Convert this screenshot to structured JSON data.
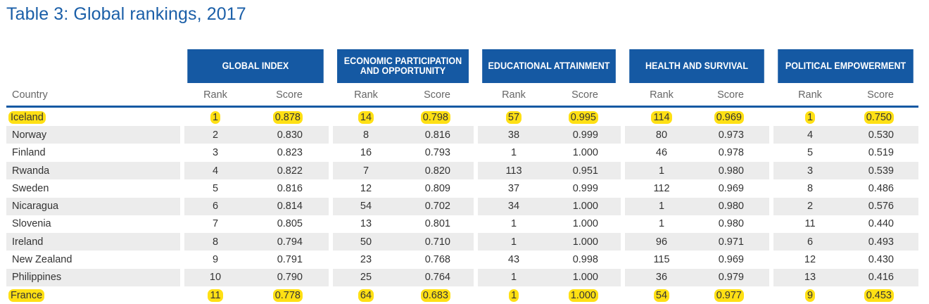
{
  "title": "Table 3: Global rankings, 2017",
  "groups": [
    "GLOBAL INDEX",
    "ECONOMIC PARTICIPATION AND OPPORTUNITY",
    "EDUCATIONAL ATTAINMENT",
    "HEALTH AND SURVIVAL",
    "POLITICAL EMPOWERMENT"
  ],
  "col_country": "Country",
  "col_rank": "Rank",
  "col_score": "Score",
  "rows": [
    {
      "country": "Iceland",
      "vals": [
        "1",
        "0.878",
        "14",
        "0.798",
        "57",
        "0.995",
        "114",
        "0.969",
        "1",
        "0.750"
      ],
      "highlight": true
    },
    {
      "country": "Norway",
      "vals": [
        "2",
        "0.830",
        "8",
        "0.816",
        "38",
        "0.999",
        "80",
        "0.973",
        "4",
        "0.530"
      ],
      "highlight": false
    },
    {
      "country": "Finland",
      "vals": [
        "3",
        "0.823",
        "16",
        "0.793",
        "1",
        "1.000",
        "46",
        "0.978",
        "5",
        "0.519"
      ],
      "highlight": false
    },
    {
      "country": "Rwanda",
      "vals": [
        "4",
        "0.822",
        "7",
        "0.820",
        "113",
        "0.951",
        "1",
        "0.980",
        "3",
        "0.539"
      ],
      "highlight": false
    },
    {
      "country": "Sweden",
      "vals": [
        "5",
        "0.816",
        "12",
        "0.809",
        "37",
        "0.999",
        "112",
        "0.969",
        "8",
        "0.486"
      ],
      "highlight": false
    },
    {
      "country": "Nicaragua",
      "vals": [
        "6",
        "0.814",
        "54",
        "0.702",
        "34",
        "1.000",
        "1",
        "0.980",
        "2",
        "0.576"
      ],
      "highlight": false
    },
    {
      "country": "Slovenia",
      "vals": [
        "7",
        "0.805",
        "13",
        "0.801",
        "1",
        "1.000",
        "1",
        "0.980",
        "11",
        "0.440"
      ],
      "highlight": false
    },
    {
      "country": "Ireland",
      "vals": [
        "8",
        "0.794",
        "50",
        "0.710",
        "1",
        "1.000",
        "96",
        "0.971",
        "6",
        "0.493"
      ],
      "highlight": false
    },
    {
      "country": "New Zealand",
      "vals": [
        "9",
        "0.791",
        "23",
        "0.768",
        "43",
        "0.998",
        "115",
        "0.969",
        "12",
        "0.430"
      ],
      "highlight": false
    },
    {
      "country": "Philippines",
      "vals": [
        "10",
        "0.790",
        "25",
        "0.764",
        "1",
        "1.000",
        "36",
        "0.979",
        "13",
        "0.416"
      ],
      "highlight": false
    },
    {
      "country": "France",
      "vals": [
        "11",
        "0.778",
        "64",
        "0.683",
        "1",
        "1.000",
        "54",
        "0.977",
        "9",
        "0.453"
      ],
      "highlight": true
    }
  ]
}
